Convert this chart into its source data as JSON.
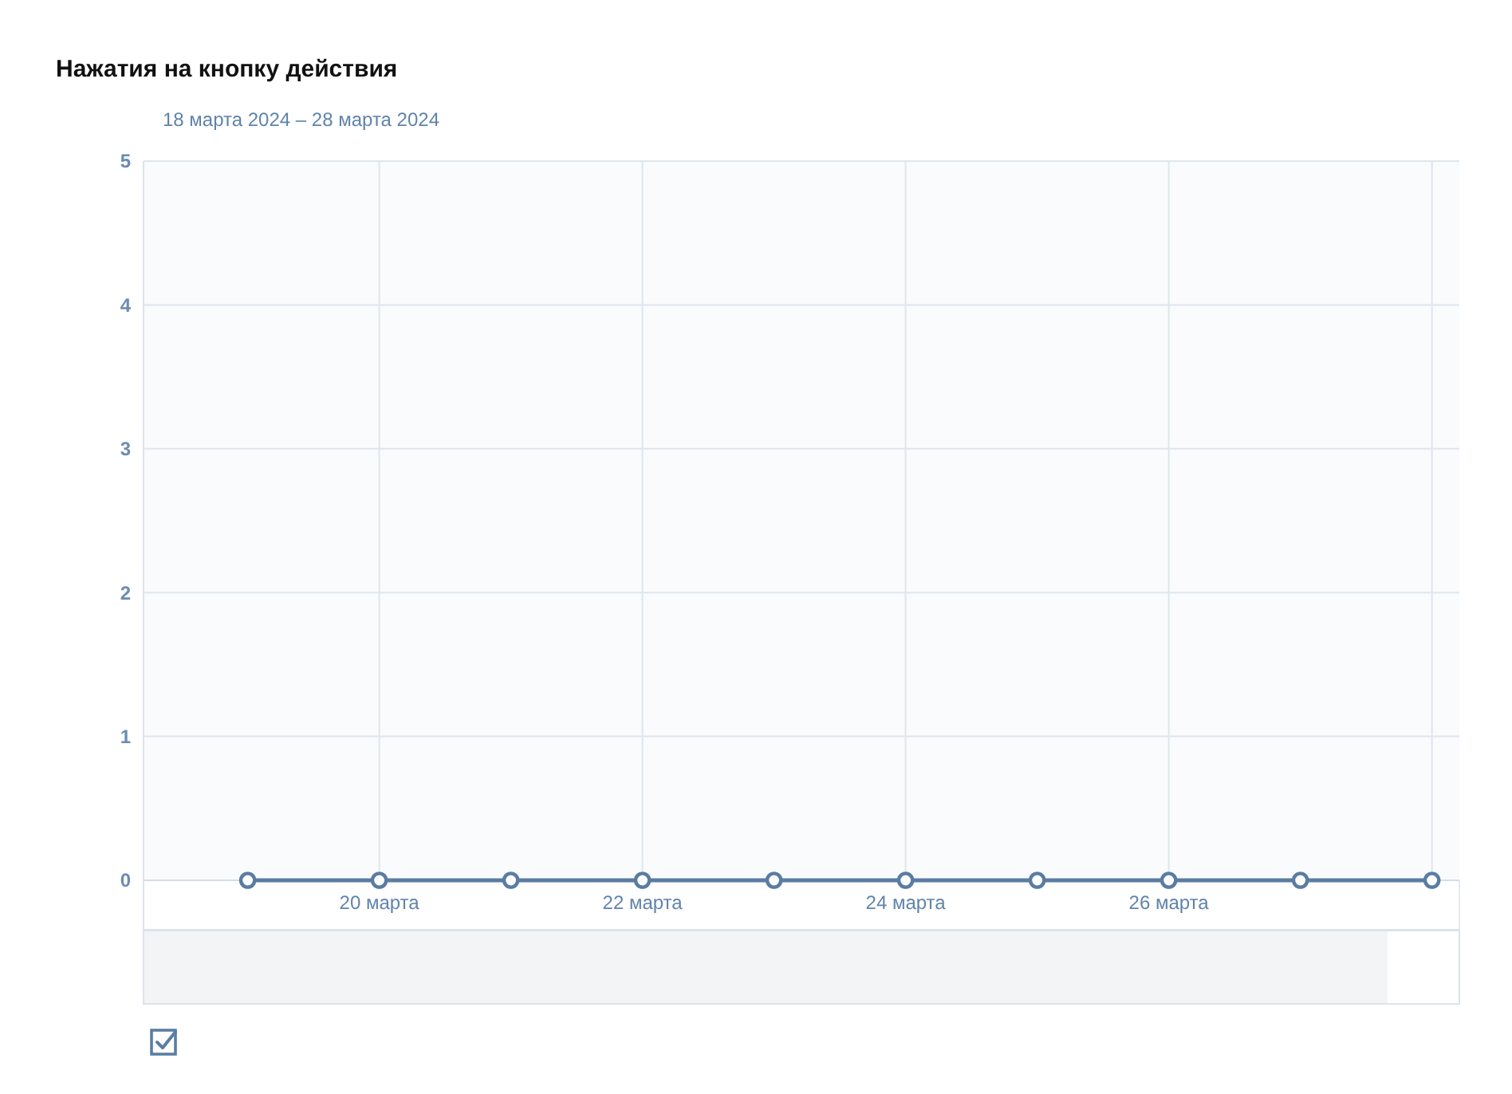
{
  "chart_data": {
    "type": "line",
    "title": "Нажатия на кнопку действия",
    "subtitle": "18 марта 2024 – 28 марта 2024",
    "x": [
      "2024-03-19",
      "2024-03-20",
      "2024-03-21",
      "2024-03-22",
      "2024-03-23",
      "2024-03-24",
      "2024-03-25",
      "2024-03-26",
      "2024-03-27",
      "2024-03-28"
    ],
    "series": [
      {
        "color": "#5a7ca3",
        "values": [
          0,
          0,
          0,
          0,
          0,
          0,
          0,
          0,
          0,
          0
        ]
      }
    ],
    "xlim": [
      "2024-03-18T05:00",
      "2024-03-28T05:00"
    ],
    "xticks": [
      {
        "value": "2024-03-20",
        "label": "20 марта"
      },
      {
        "value": "2024-03-22",
        "label": "22 марта"
      },
      {
        "value": "2024-03-24",
        "label": "24 марта"
      },
      {
        "value": "2024-03-26",
        "label": "26 марта"
      },
      {
        "value": "2024-03-28",
        "label": null
      }
    ],
    "ylim": [
      0,
      5
    ],
    "yticks": [
      0,
      1,
      2,
      3,
      4,
      5
    ],
    "grid": true,
    "marker": "circle"
  }
}
